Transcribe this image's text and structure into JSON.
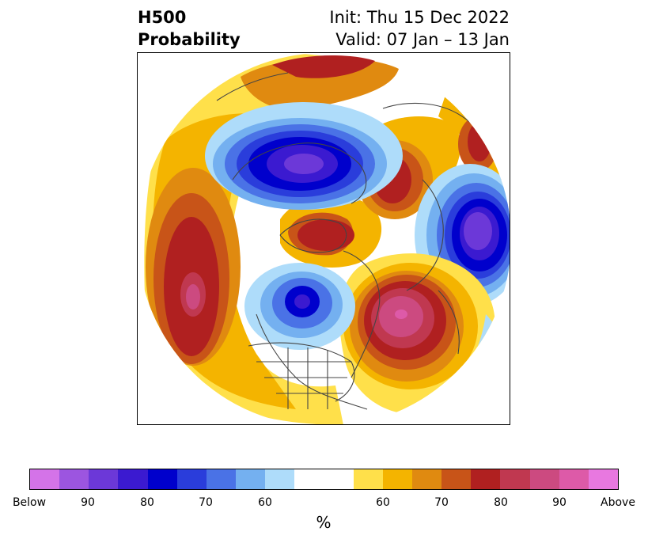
{
  "title": {
    "left_line1": "H500",
    "left_line2": "Probability",
    "right_line1": "Init: Thu 15 Dec 2022",
    "right_line2": "Valid: 07 Jan – 13 Jan"
  },
  "colorbar": {
    "unit": "%",
    "tick_labels": [
      "Below",
      "90",
      "80",
      "70",
      "60",
      "60",
      "70",
      "80",
      "90",
      "Above"
    ],
    "below_colors": [
      "#d473e8",
      "#9c55e0",
      "#6c38d8",
      "#3b1ad0",
      "#0000cc",
      "#2a3ddb",
      "#4a72e6",
      "#74b0f0",
      "#aedcfa"
    ],
    "neutral_color": "#ffffff",
    "above_colors": [
      "#ffe04a",
      "#f4b400",
      "#e08a10",
      "#c85418",
      "#b02020",
      "#c03850",
      "#cc4a80",
      "#dd5aa8",
      "#e878e0"
    ]
  },
  "map": {
    "projection": "north polar stereographic",
    "features": [
      "coastlines",
      "country borders",
      "US state borders"
    ]
  }
}
